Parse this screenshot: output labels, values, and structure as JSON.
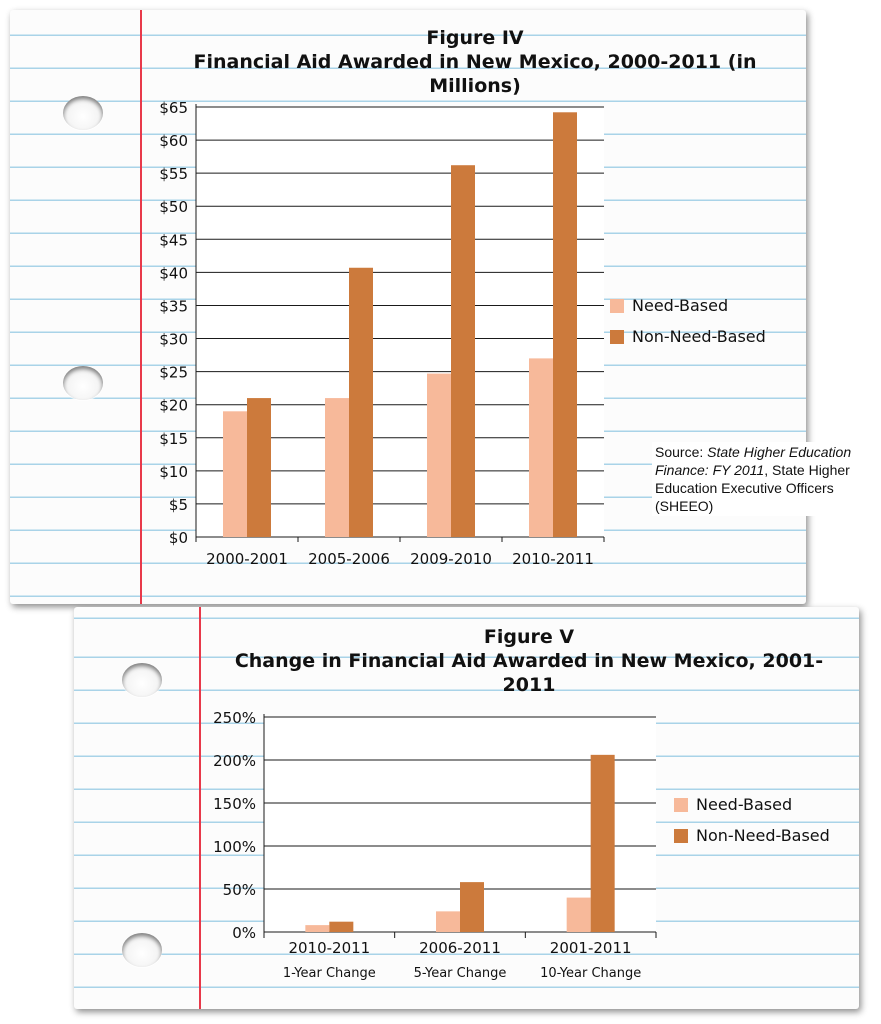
{
  "colors": {
    "need_based": "#f7b99a",
    "non_need_based": "#cc7a3c",
    "margin_line": "#e8394a",
    "rule_line": "#a9d3e8"
  },
  "figure4": {
    "title_line1": "Figure IV",
    "title_line2": "Financial Aid Awarded in New Mexico, 2000-2011 (in Millions)",
    "legend": [
      "Need-Based",
      "Non-Need-Based"
    ],
    "source_label": "Source: ",
    "source_italic": "State Higher Education Finance: FY 2011",
    "source_rest": ", State Higher Education Executive Officers (SHEEO)"
  },
  "figure5": {
    "title_line1": "Figure V",
    "title_line2": "Change in Financial Aid Awarded in New Mexico, 2001-2011",
    "legend": [
      "Need-Based",
      "Non-Need-Based"
    ]
  },
  "chart_data": [
    {
      "type": "bar",
      "title": "Financial Aid Awarded in New Mexico, 2000-2011 (in Millions)",
      "categories": [
        "2000-2001",
        "2005-2006",
        "2009-2010",
        "2010-2011"
      ],
      "series": [
        {
          "name": "Need-Based",
          "values": [
            19,
            21,
            24.7,
            27
          ]
        },
        {
          "name": "Non-Need-Based",
          "values": [
            21,
            40.7,
            56.2,
            64.2
          ]
        }
      ],
      "y_ticks": [
        "$0",
        "$5",
        "$10",
        "$15",
        "$20",
        "$25",
        "$30",
        "$35",
        "$40",
        "$45",
        "$50",
        "$55",
        "$60",
        "$65"
      ],
      "ylim": [
        0,
        65
      ],
      "ystep": 5,
      "xlabel": "",
      "ylabel": "",
      "legend_position": "right"
    },
    {
      "type": "bar",
      "title": "Change in Financial Aid Awarded in New Mexico, 2001-2011",
      "categories": [
        "2010-2011",
        "2006-2011",
        "2001-2011"
      ],
      "category_sublabels": [
        "1-Year Change",
        "5-Year Change",
        "10-Year Change"
      ],
      "series": [
        {
          "name": "Need-Based",
          "values": [
            8,
            24,
            40
          ]
        },
        {
          "name": "Non-Need-Based",
          "values": [
            12,
            58,
            206
          ]
        }
      ],
      "y_ticks": [
        "0%",
        "50%",
        "100%",
        "150%",
        "200%",
        "250%"
      ],
      "ylim": [
        0,
        250
      ],
      "ystep": 50,
      "xlabel": "",
      "ylabel": "",
      "legend_position": "right"
    }
  ]
}
